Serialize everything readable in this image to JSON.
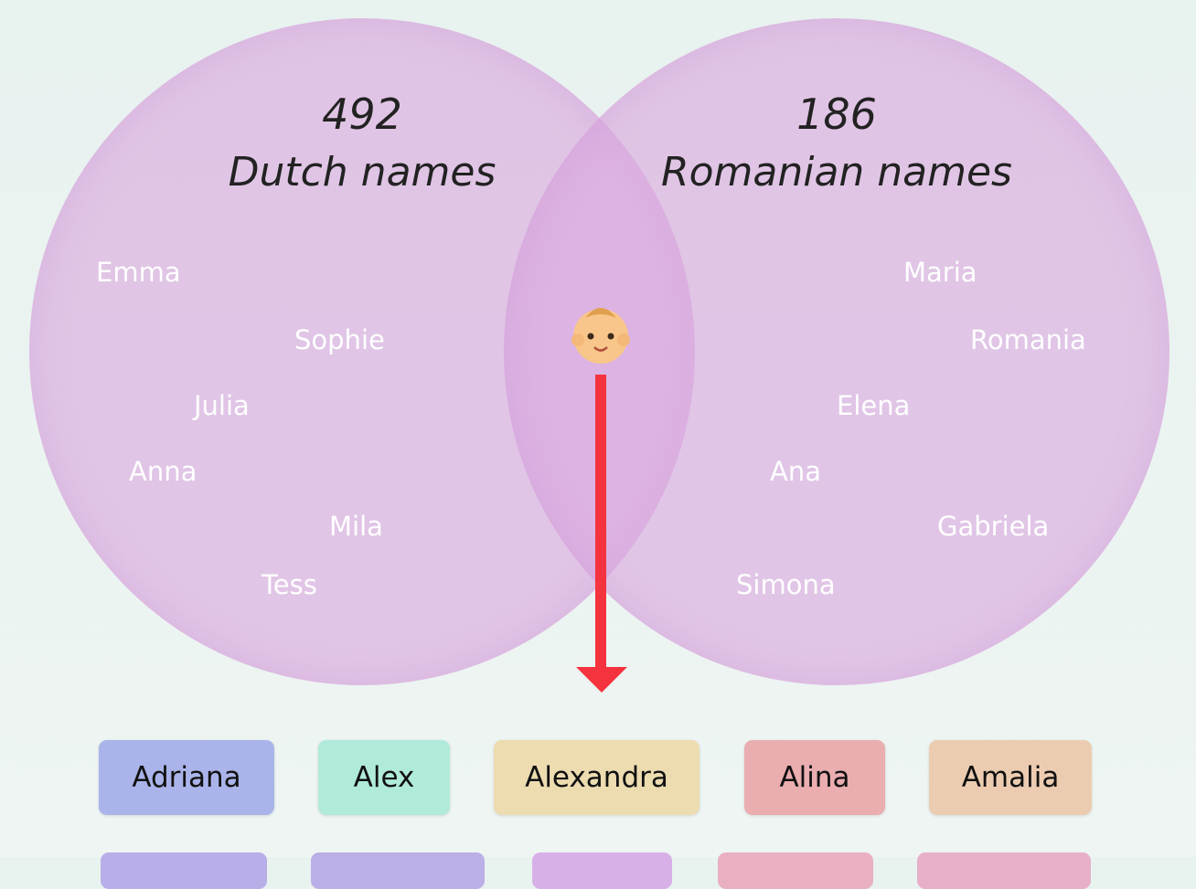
{
  "venn": {
    "sets": [
      {
        "count": "492",
        "label": "Dutch names",
        "names": [
          "Emma",
          "Sophie",
          "Julia",
          "Anna",
          "Mila",
          "Tess"
        ]
      },
      {
        "count": "186",
        "label": "Romanian names",
        "names": [
          "Maria",
          "Romania",
          "Elena",
          "Ana",
          "Gabriela",
          "Simona"
        ]
      }
    ]
  },
  "chips": [
    "Adriana",
    "Alex",
    "Alexandra",
    "Alina",
    "Amalia"
  ]
}
